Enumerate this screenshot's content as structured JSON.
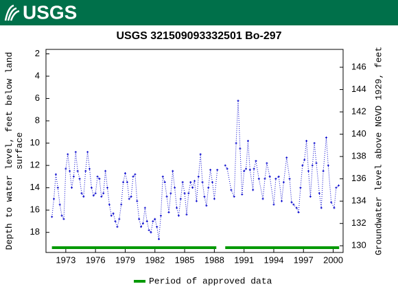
{
  "header": {
    "logo": "USGS"
  },
  "chart_data": {
    "type": "line",
    "title": "USGS 321509093332501 Bo-297",
    "ylabel_lines": [
      "Depth to water level, feet below land",
      "surface"
    ],
    "y2label": "Groundwater level above NGVD 1929, feet",
    "xlim": [
      1971.0,
      2001.0
    ],
    "xticks": [
      1973,
      1976,
      1979,
      1982,
      1985,
      1988,
      1991,
      1994,
      1997,
      2000
    ],
    "ylim": [
      19.8,
      1.6
    ],
    "yticks": [
      2,
      4,
      6,
      8,
      10,
      12,
      14,
      16,
      18
    ],
    "y2lim": [
      129.4,
      147.6
    ],
    "y2ticks": [
      130,
      132,
      134,
      136,
      138,
      140,
      142,
      144,
      146
    ],
    "grid": false,
    "x": [
      1971.6,
      1971.8,
      1972.0,
      1972.2,
      1972.4,
      1972.6,
      1972.8,
      1973.0,
      1973.2,
      1973.4,
      1973.6,
      1973.8,
      1974.0,
      1974.2,
      1974.4,
      1974.6,
      1974.8,
      1975.0,
      1975.2,
      1975.4,
      1975.6,
      1975.8,
      1976.0,
      1976.2,
      1976.4,
      1976.6,
      1976.8,
      1977.0,
      1977.2,
      1977.4,
      1977.6,
      1977.8,
      1978.0,
      1978.2,
      1978.4,
      1978.6,
      1978.8,
      1979.0,
      1979.2,
      1979.4,
      1979.6,
      1979.8,
      1980.0,
      1980.2,
      1980.4,
      1980.6,
      1980.8,
      1981.0,
      1981.2,
      1981.4,
      1981.6,
      1981.8,
      1982.0,
      1982.2,
      1982.4,
      1982.6,
      1982.8,
      1983.0,
      1983.2,
      1983.4,
      1983.6,
      1983.8,
      1984.0,
      1984.2,
      1984.4,
      1984.6,
      1984.8,
      1985.0,
      1985.2,
      1985.4,
      1985.6,
      1985.8,
      1986.0,
      1986.2,
      1986.4,
      1986.6,
      1986.8,
      1987.0,
      1987.2,
      1987.4,
      1987.6,
      1987.8,
      1988.0,
      1988.3,
      1988.7,
      1989.1,
      1989.3,
      1989.7,
      1990.0,
      1990.2,
      1990.4,
      1990.6,
      1990.8,
      1991.0,
      1991.2,
      1991.4,
      1991.6,
      1991.9,
      1992.0,
      1992.2,
      1992.5,
      1992.9,
      1993.1,
      1993.3,
      1993.6,
      1994.0,
      1994.2,
      1994.5,
      1994.8,
      1995.0,
      1995.3,
      1995.6,
      1995.8,
      1996.0,
      1996.3,
      1996.5,
      1996.7,
      1996.9,
      1997.1,
      1997.3,
      1997.5,
      1997.7,
      1997.9,
      1998.1,
      1998.3,
      1998.6,
      1998.8,
      1999.0,
      1999.3,
      1999.5,
      1999.8,
      2000.1,
      2000.3,
      2000.55
    ],
    "series": [
      {
        "name": "Depth to water level",
        "color": "#0000cc",
        "values": [
          16.6,
          15,
          12.8,
          14,
          15.5,
          16.5,
          16.8,
          12.3,
          11,
          12.5,
          14,
          13,
          10.8,
          12.5,
          13.2,
          14.5,
          14.8,
          12.5,
          10.8,
          12.3,
          14,
          14.7,
          14.5,
          13,
          13.2,
          14.8,
          14.5,
          12.5,
          14,
          15.5,
          16.5,
          16.3,
          17,
          17.5,
          16.8,
          15.5,
          13.5,
          12.7,
          13.5,
          15,
          14.8,
          13,
          12.8,
          15.2,
          16.8,
          17.5,
          17.2,
          15.8,
          17,
          17.8,
          18,
          17,
          16.8,
          17.5,
          18.6,
          16.5,
          13,
          13.5,
          14.8,
          16.2,
          14.5,
          12.5,
          14,
          15.8,
          16.5,
          15,
          13.5,
          14.5,
          16.4,
          14.5,
          13.5,
          14,
          13.4,
          15.2,
          13,
          11,
          13.5,
          14.8,
          15.6,
          14,
          12.4,
          13.5,
          15,
          12.4,
          null,
          12.0,
          12.3,
          14.2,
          14.8,
          10,
          6.2,
          10.5,
          14.6,
          12.5,
          12.3,
          9.8,
          12.4,
          14.2,
          12.3,
          11.6,
          13.2,
          15,
          13.2,
          11.8,
          13,
          15.5,
          13.2,
          13,
          15.2,
          13.5,
          11.3,
          13.2,
          15.3,
          15.5,
          15.8,
          16.2,
          14,
          12,
          11.5,
          9.8,
          12.5,
          14.8,
          12,
          10,
          11.8,
          14.5,
          15.8,
          12.5,
          9.5,
          12,
          15.3,
          15.8,
          14,
          13.8
        ]
      }
    ],
    "approved": {
      "name": "Period of approved data",
      "color": "#009900",
      "periods": [
        [
          1971.6,
          1988.2
        ],
        [
          1989.1,
          2000.6
        ]
      ]
    }
  }
}
